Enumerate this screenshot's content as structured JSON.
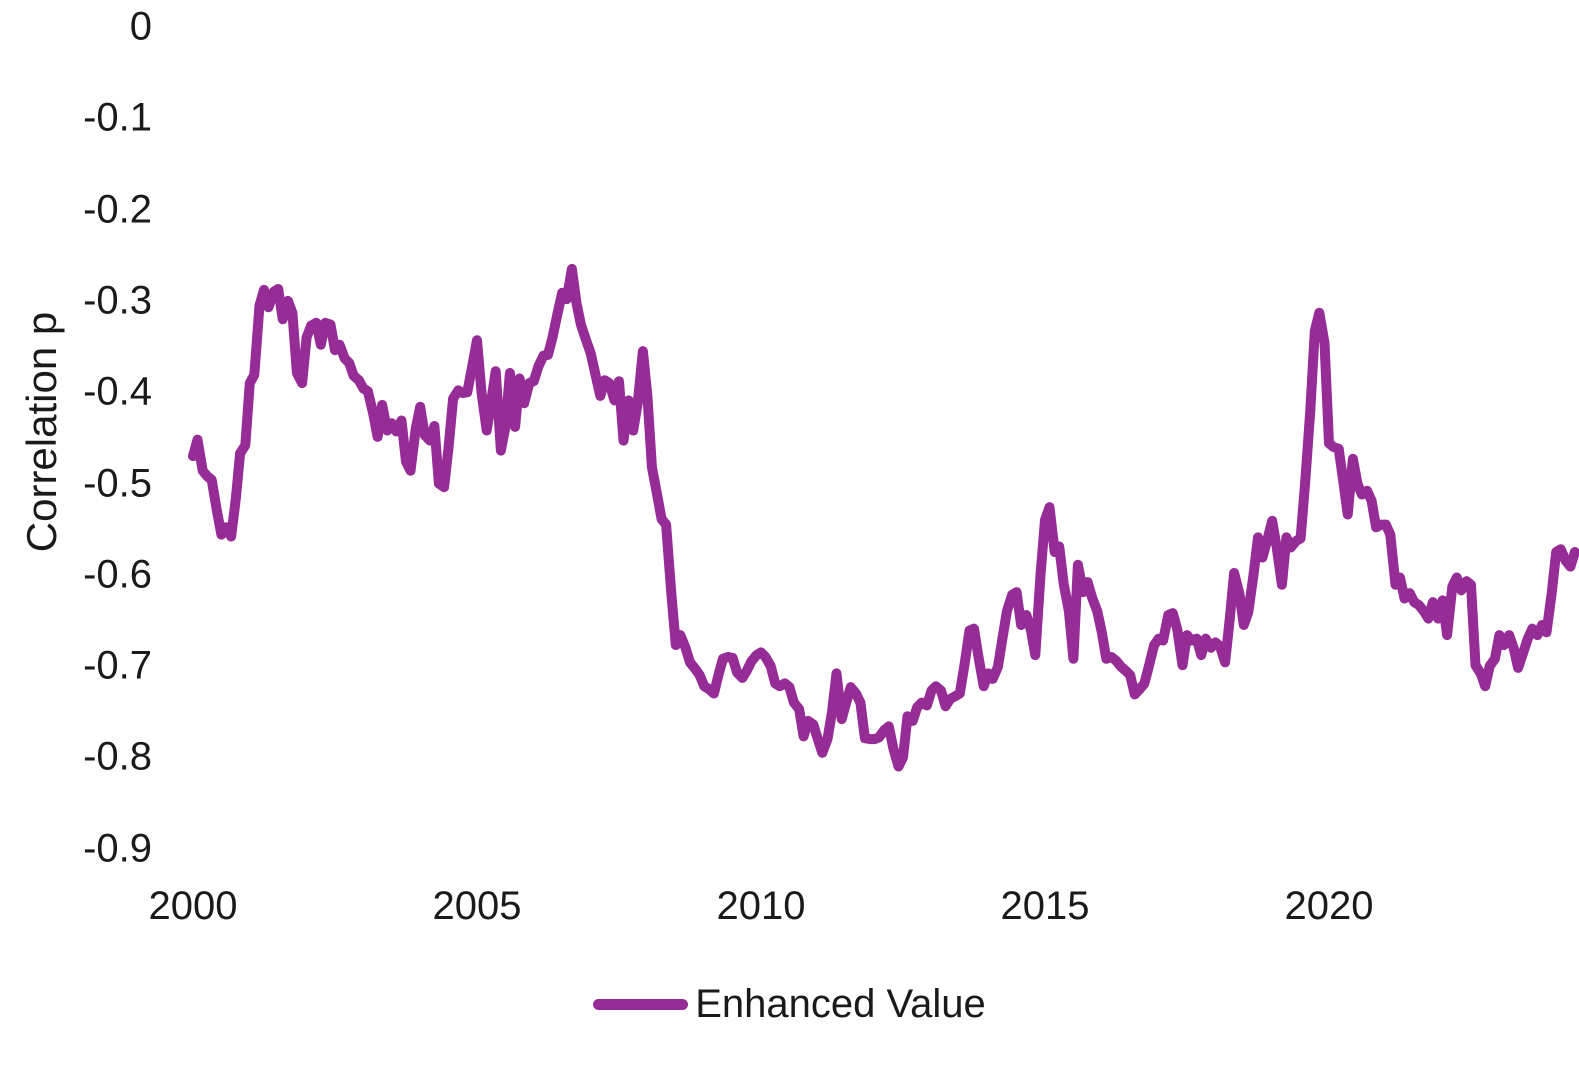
{
  "chart_data": {
    "type": "line",
    "ylabel": "Correlation p",
    "xlabel": "",
    "x_ticks": [
      "2000",
      "2005",
      "2010",
      "2015",
      "2020"
    ],
    "y_ticks": [
      "0",
      "-0.1",
      "-0.2",
      "-0.3",
      "-0.4",
      "-0.5",
      "-0.6",
      "-0.7",
      "-0.8",
      "-0.9"
    ],
    "xlim": [
      2000,
      2024.4
    ],
    "ylim": [
      -0.9,
      0
    ],
    "grid": false,
    "axis_lines": false,
    "legend_position": "bottom-center",
    "text_color": "#1a1a1a",
    "background_color": "#ffffff",
    "series": [
      {
        "name": "Enhanced Value",
        "color": "#962D96",
        "line_width": 10,
        "points": [
          [
            2000.0,
            -0.47
          ],
          [
            2000.08,
            -0.452
          ],
          [
            2000.17,
            -0.486
          ],
          [
            2000.25,
            -0.492
          ],
          [
            2000.33,
            -0.496
          ],
          [
            2000.42,
            -0.53
          ],
          [
            2000.5,
            -0.556
          ],
          [
            2000.58,
            -0.548
          ],
          [
            2000.67,
            -0.558
          ],
          [
            2000.75,
            -0.519
          ],
          [
            2000.83,
            -0.467
          ],
          [
            2000.92,
            -0.458
          ],
          [
            2001.0,
            -0.39
          ],
          [
            2001.08,
            -0.381
          ],
          [
            2001.17,
            -0.305
          ],
          [
            2001.25,
            -0.288
          ],
          [
            2001.33,
            -0.307
          ],
          [
            2001.42,
            -0.29
          ],
          [
            2001.5,
            -0.287
          ],
          [
            2001.58,
            -0.32
          ],
          [
            2001.67,
            -0.3
          ],
          [
            2001.75,
            -0.313
          ],
          [
            2001.83,
            -0.379
          ],
          [
            2001.92,
            -0.39
          ],
          [
            2002.0,
            -0.34
          ],
          [
            2002.08,
            -0.327
          ],
          [
            2002.17,
            -0.324
          ],
          [
            2002.25,
            -0.348
          ],
          [
            2002.33,
            -0.324
          ],
          [
            2002.42,
            -0.326
          ],
          [
            2002.5,
            -0.354
          ],
          [
            2002.58,
            -0.348
          ],
          [
            2002.67,
            -0.363
          ],
          [
            2002.75,
            -0.368
          ],
          [
            2002.83,
            -0.382
          ],
          [
            2002.92,
            -0.387
          ],
          [
            2003.0,
            -0.396
          ],
          [
            2003.08,
            -0.399
          ],
          [
            2003.17,
            -0.423
          ],
          [
            2003.25,
            -0.449
          ],
          [
            2003.33,
            -0.414
          ],
          [
            2003.42,
            -0.442
          ],
          [
            2003.5,
            -0.434
          ],
          [
            2003.58,
            -0.443
          ],
          [
            2003.67,
            -0.431
          ],
          [
            2003.75,
            -0.476
          ],
          [
            2003.83,
            -0.486
          ],
          [
            2003.92,
            -0.44
          ],
          [
            2004.0,
            -0.416
          ],
          [
            2004.08,
            -0.447
          ],
          [
            2004.17,
            -0.453
          ],
          [
            2004.25,
            -0.437
          ],
          [
            2004.33,
            -0.5
          ],
          [
            2004.42,
            -0.504
          ],
          [
            2004.5,
            -0.46
          ],
          [
            2004.58,
            -0.407
          ],
          [
            2004.67,
            -0.398
          ],
          [
            2004.75,
            -0.401
          ],
          [
            2004.83,
            -0.4
          ],
          [
            2004.92,
            -0.37
          ],
          [
            2005.0,
            -0.343
          ],
          [
            2005.08,
            -0.4
          ],
          [
            2005.17,
            -0.442
          ],
          [
            2005.25,
            -0.41
          ],
          [
            2005.33,
            -0.377
          ],
          [
            2005.42,
            -0.464
          ],
          [
            2005.5,
            -0.438
          ],
          [
            2005.58,
            -0.379
          ],
          [
            2005.67,
            -0.438
          ],
          [
            2005.75,
            -0.385
          ],
          [
            2005.83,
            -0.412
          ],
          [
            2005.92,
            -0.39
          ],
          [
            2006.0,
            -0.388
          ],
          [
            2006.08,
            -0.372
          ],
          [
            2006.17,
            -0.36
          ],
          [
            2006.25,
            -0.359
          ],
          [
            2006.33,
            -0.34
          ],
          [
            2006.42,
            -0.313
          ],
          [
            2006.5,
            -0.291
          ],
          [
            2006.58,
            -0.298
          ],
          [
            2006.67,
            -0.265
          ],
          [
            2006.75,
            -0.302
          ],
          [
            2006.83,
            -0.326
          ],
          [
            2006.92,
            -0.343
          ],
          [
            2007.0,
            -0.357
          ],
          [
            2007.08,
            -0.379
          ],
          [
            2007.17,
            -0.404
          ],
          [
            2007.25,
            -0.387
          ],
          [
            2007.33,
            -0.39
          ],
          [
            2007.42,
            -0.409
          ],
          [
            2007.5,
            -0.388
          ],
          [
            2007.58,
            -0.453
          ],
          [
            2007.67,
            -0.409
          ],
          [
            2007.75,
            -0.442
          ],
          [
            2007.83,
            -0.412
          ],
          [
            2007.92,
            -0.355
          ],
          [
            2008.0,
            -0.404
          ],
          [
            2008.08,
            -0.482
          ],
          [
            2008.17,
            -0.512
          ],
          [
            2008.25,
            -0.539
          ],
          [
            2008.33,
            -0.545
          ],
          [
            2008.42,
            -0.62
          ],
          [
            2008.5,
            -0.677
          ],
          [
            2008.58,
            -0.666
          ],
          [
            2008.67,
            -0.68
          ],
          [
            2008.75,
            -0.696
          ],
          [
            2008.83,
            -0.702
          ],
          [
            2008.92,
            -0.71
          ],
          [
            2009.0,
            -0.722
          ],
          [
            2009.08,
            -0.725
          ],
          [
            2009.17,
            -0.73
          ],
          [
            2009.25,
            -0.71
          ],
          [
            2009.33,
            -0.692
          ],
          [
            2009.42,
            -0.69
          ],
          [
            2009.5,
            -0.691
          ],
          [
            2009.58,
            -0.707
          ],
          [
            2009.67,
            -0.713
          ],
          [
            2009.75,
            -0.705
          ],
          [
            2009.83,
            -0.695
          ],
          [
            2009.92,
            -0.688
          ],
          [
            2010.0,
            -0.685
          ],
          [
            2010.08,
            -0.69
          ],
          [
            2010.17,
            -0.7
          ],
          [
            2010.25,
            -0.719
          ],
          [
            2010.33,
            -0.722
          ],
          [
            2010.42,
            -0.719
          ],
          [
            2010.5,
            -0.723
          ],
          [
            2010.58,
            -0.74
          ],
          [
            2010.67,
            -0.747
          ],
          [
            2010.75,
            -0.777
          ],
          [
            2010.83,
            -0.76
          ],
          [
            2010.92,
            -0.764
          ],
          [
            2011.0,
            -0.78
          ],
          [
            2011.08,
            -0.795
          ],
          [
            2011.17,
            -0.78
          ],
          [
            2011.25,
            -0.75
          ],
          [
            2011.33,
            -0.708
          ],
          [
            2011.42,
            -0.758
          ],
          [
            2011.5,
            -0.74
          ],
          [
            2011.58,
            -0.723
          ],
          [
            2011.67,
            -0.73
          ],
          [
            2011.75,
            -0.74
          ],
          [
            2011.83,
            -0.779
          ],
          [
            2011.92,
            -0.78
          ],
          [
            2012.0,
            -0.78
          ],
          [
            2012.08,
            -0.778
          ],
          [
            2012.17,
            -0.77
          ],
          [
            2012.25,
            -0.766
          ],
          [
            2012.33,
            -0.79
          ],
          [
            2012.42,
            -0.81
          ],
          [
            2012.5,
            -0.8
          ],
          [
            2012.58,
            -0.755
          ],
          [
            2012.67,
            -0.76
          ],
          [
            2012.75,
            -0.745
          ],
          [
            2012.83,
            -0.74
          ],
          [
            2012.92,
            -0.743
          ],
          [
            2013.0,
            -0.727
          ],
          [
            2013.08,
            -0.722
          ],
          [
            2013.17,
            -0.727
          ],
          [
            2013.25,
            -0.744
          ],
          [
            2013.33,
            -0.736
          ],
          [
            2013.42,
            -0.733
          ],
          [
            2013.5,
            -0.73
          ],
          [
            2013.58,
            -0.7
          ],
          [
            2013.67,
            -0.661
          ],
          [
            2013.75,
            -0.659
          ],
          [
            2013.83,
            -0.69
          ],
          [
            2013.92,
            -0.722
          ],
          [
            2014.0,
            -0.708
          ],
          [
            2014.08,
            -0.714
          ],
          [
            2014.17,
            -0.701
          ],
          [
            2014.25,
            -0.67
          ],
          [
            2014.33,
            -0.64
          ],
          [
            2014.42,
            -0.622
          ],
          [
            2014.5,
            -0.619
          ],
          [
            2014.58,
            -0.655
          ],
          [
            2014.67,
            -0.644
          ],
          [
            2014.75,
            -0.66
          ],
          [
            2014.83,
            -0.688
          ],
          [
            2014.92,
            -0.6
          ],
          [
            2015.0,
            -0.54
          ],
          [
            2015.08,
            -0.526
          ],
          [
            2015.17,
            -0.575
          ],
          [
            2015.25,
            -0.569
          ],
          [
            2015.33,
            -0.61
          ],
          [
            2015.42,
            -0.64
          ],
          [
            2015.5,
            -0.692
          ],
          [
            2015.58,
            -0.589
          ],
          [
            2015.67,
            -0.619
          ],
          [
            2015.75,
            -0.608
          ],
          [
            2015.83,
            -0.625
          ],
          [
            2015.92,
            -0.64
          ],
          [
            2016.0,
            -0.663
          ],
          [
            2016.08,
            -0.692
          ],
          [
            2016.17,
            -0.69
          ],
          [
            2016.25,
            -0.694
          ],
          [
            2016.33,
            -0.7
          ],
          [
            2016.42,
            -0.705
          ],
          [
            2016.5,
            -0.71
          ],
          [
            2016.58,
            -0.731
          ],
          [
            2016.67,
            -0.725
          ],
          [
            2016.75,
            -0.719
          ],
          [
            2016.83,
            -0.7
          ],
          [
            2016.92,
            -0.677
          ],
          [
            2017.0,
            -0.67
          ],
          [
            2017.08,
            -0.672
          ],
          [
            2017.17,
            -0.644
          ],
          [
            2017.25,
            -0.642
          ],
          [
            2017.33,
            -0.66
          ],
          [
            2017.42,
            -0.699
          ],
          [
            2017.5,
            -0.666
          ],
          [
            2017.58,
            -0.672
          ],
          [
            2017.67,
            -0.67
          ],
          [
            2017.75,
            -0.688
          ],
          [
            2017.83,
            -0.67
          ],
          [
            2017.92,
            -0.68
          ],
          [
            2018.0,
            -0.674
          ],
          [
            2018.08,
            -0.678
          ],
          [
            2018.17,
            -0.696
          ],
          [
            2018.25,
            -0.65
          ],
          [
            2018.33,
            -0.598
          ],
          [
            2018.42,
            -0.62
          ],
          [
            2018.5,
            -0.655
          ],
          [
            2018.58,
            -0.641
          ],
          [
            2018.67,
            -0.6
          ],
          [
            2018.75,
            -0.559
          ],
          [
            2018.83,
            -0.581
          ],
          [
            2018.92,
            -0.56
          ],
          [
            2019.0,
            -0.541
          ],
          [
            2019.08,
            -0.57
          ],
          [
            2019.17,
            -0.611
          ],
          [
            2019.25,
            -0.559
          ],
          [
            2019.33,
            -0.57
          ],
          [
            2019.42,
            -0.563
          ],
          [
            2019.5,
            -0.56
          ],
          [
            2019.58,
            -0.5
          ],
          [
            2019.67,
            -0.42
          ],
          [
            2019.75,
            -0.333
          ],
          [
            2019.83,
            -0.313
          ],
          [
            2019.92,
            -0.346
          ],
          [
            2020.0,
            -0.456
          ],
          [
            2020.08,
            -0.46
          ],
          [
            2020.17,
            -0.462
          ],
          [
            2020.25,
            -0.497
          ],
          [
            2020.33,
            -0.534
          ],
          [
            2020.42,
            -0.473
          ],
          [
            2020.5,
            -0.5
          ],
          [
            2020.58,
            -0.512
          ],
          [
            2020.67,
            -0.508
          ],
          [
            2020.75,
            -0.519
          ],
          [
            2020.83,
            -0.548
          ],
          [
            2020.92,
            -0.545
          ],
          [
            2021.0,
            -0.545
          ],
          [
            2021.08,
            -0.556
          ],
          [
            2021.17,
            -0.611
          ],
          [
            2021.25,
            -0.603
          ],
          [
            2021.33,
            -0.626
          ],
          [
            2021.42,
            -0.62
          ],
          [
            2021.5,
            -0.63
          ],
          [
            2021.58,
            -0.633
          ],
          [
            2021.67,
            -0.64
          ],
          [
            2021.75,
            -0.648
          ],
          [
            2021.83,
            -0.63
          ],
          [
            2021.92,
            -0.648
          ],
          [
            2022.0,
            -0.628
          ],
          [
            2022.08,
            -0.666
          ],
          [
            2022.17,
            -0.613
          ],
          [
            2022.25,
            -0.603
          ],
          [
            2022.33,
            -0.617
          ],
          [
            2022.42,
            -0.607
          ],
          [
            2022.5,
            -0.611
          ],
          [
            2022.58,
            -0.699
          ],
          [
            2022.67,
            -0.708
          ],
          [
            2022.75,
            -0.722
          ],
          [
            2022.83,
            -0.7
          ],
          [
            2022.92,
            -0.692
          ],
          [
            2023.0,
            -0.666
          ],
          [
            2023.08,
            -0.677
          ],
          [
            2023.17,
            -0.666
          ],
          [
            2023.25,
            -0.68
          ],
          [
            2023.33,
            -0.702
          ],
          [
            2023.42,
            -0.685
          ],
          [
            2023.5,
            -0.67
          ],
          [
            2023.58,
            -0.659
          ],
          [
            2023.67,
            -0.666
          ],
          [
            2023.75,
            -0.655
          ],
          [
            2023.83,
            -0.663
          ],
          [
            2023.92,
            -0.62
          ],
          [
            2024.0,
            -0.575
          ],
          [
            2024.08,
            -0.572
          ],
          [
            2024.17,
            -0.585
          ],
          [
            2024.25,
            -0.591
          ],
          [
            2024.33,
            -0.575
          ]
        ]
      }
    ]
  }
}
